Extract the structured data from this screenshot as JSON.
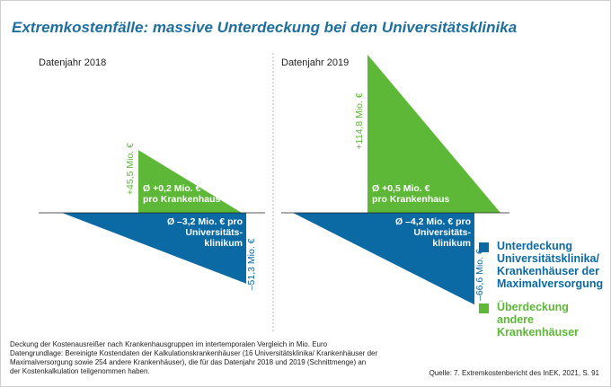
{
  "title": "Extremkostenfälle: massive Unterdeckung bei den Universitätsklinika",
  "colors": {
    "deficit": "#0b6aa4",
    "surplus": "#5cb836",
    "divider": "#b5b5b5",
    "title": "#1f6f9e"
  },
  "chart_data": {
    "type": "area",
    "panels": [
      {
        "year_label": "Datenjahr 2018",
        "surplus": {
          "value": 45.5,
          "value_label": "+45,5 Mio. €",
          "avg_label_lines": [
            "Ø +0,2 Mio. €",
            "pro Krankenhaus"
          ]
        },
        "deficit": {
          "value": -51.3,
          "value_label": "–51,3 Mio. €",
          "avg_label_lines": [
            "Ø –3,2 Mio. € pro",
            "Universitäts-",
            "klinikum"
          ]
        }
      },
      {
        "year_label": "Datenjahr 2019",
        "surplus": {
          "value": 114.8,
          "value_label": "+114,8 Mio. €",
          "avg_label_lines": [
            "Ø +0,5 Mio. €",
            "pro Krankenhaus"
          ]
        },
        "deficit": {
          "value": -66.6,
          "value_label": "–66,6 Mio. €",
          "avg_label_lines": [
            "Ø –4,2 Mio. € pro",
            "Universitäts-",
            "klinikum"
          ]
        }
      }
    ],
    "legend": [
      {
        "key": "deficit",
        "label": "Unterdeckung\nUniversitätsklinika/\nKrankenhäuser der\nMaximalversorgung"
      },
      {
        "key": "surplus",
        "label": "Überdeckung\nandere\nKrankenhäuser"
      }
    ]
  },
  "notes": "Deckung der Kostenausreißer nach Krankenhausgruppen im intertemporalen Vergleich in Mio. Euro Datengrundlage: Bereinigte Kostendaten der Kalkulationskrankenhäuser (16 Universitätsklinika/ Krankenhäuser der Maximalversorgung sowie 254 andere Krankenhäuser), die für das Datenjahr 2018 und 2019 (Schnittmenge) an der Kostenkalkulation teilgenommen haben.",
  "source": "Quelle: 7. Extremkostenbericht des InEK, 2021, S. 91"
}
